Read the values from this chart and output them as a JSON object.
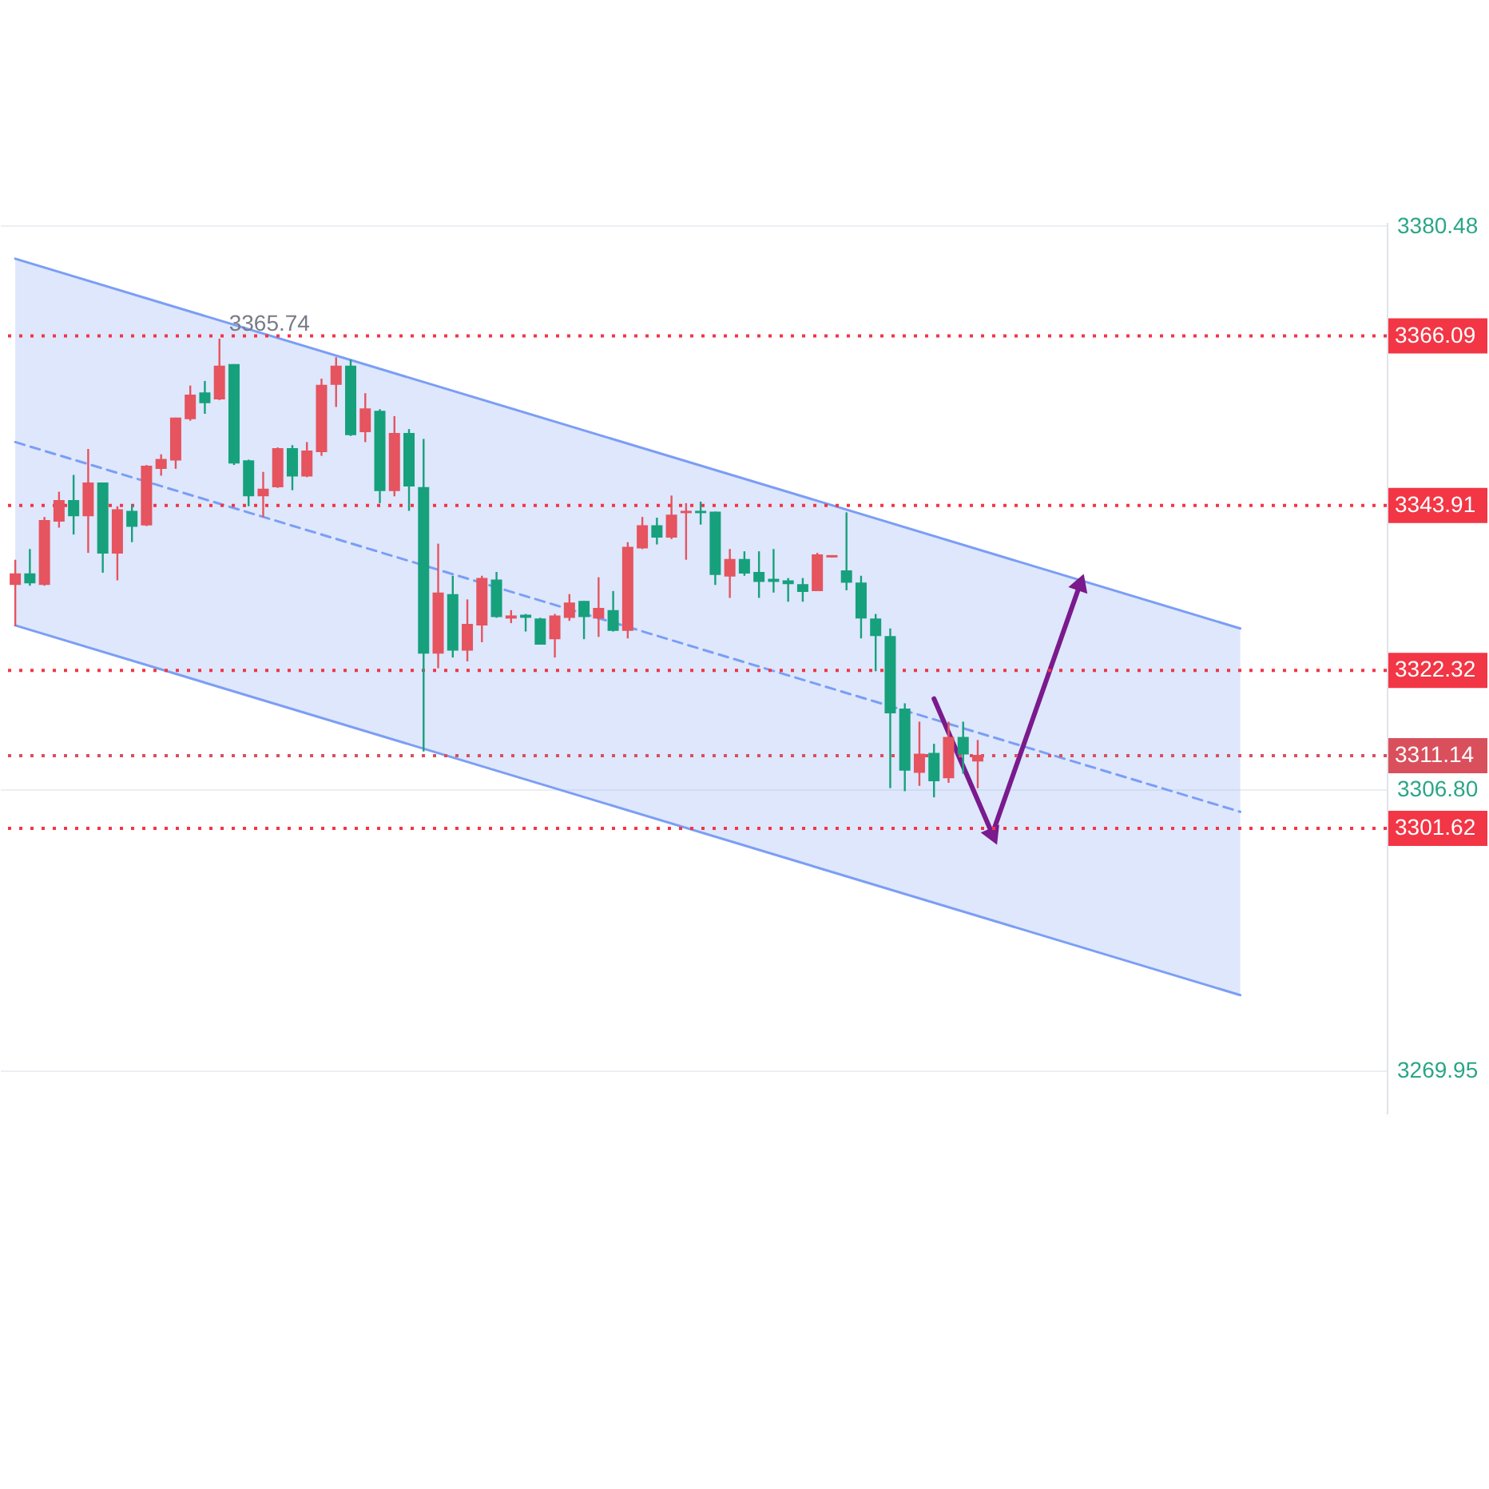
{
  "chart_data": {
    "type": "candlestick",
    "categories": [
      null,
      null,
      null,
      null,
      null,
      null,
      null,
      null,
      null,
      null,
      null,
      null,
      null,
      null,
      null,
      null,
      null,
      null,
      null,
      null,
      null,
      null,
      null,
      null,
      null,
      null,
      null,
      null,
      null,
      null,
      null,
      null,
      null,
      null,
      null,
      null,
      null,
      null,
      null,
      null,
      null,
      null,
      null,
      null,
      null,
      null,
      null,
      null,
      null,
      null,
      null,
      null,
      null,
      null,
      null,
      null,
      null,
      null,
      null,
      null,
      null,
      null,
      null,
      null,
      null,
      null,
      null,
      null,
      null,
      null,
      null,
      null,
      null,
      null,
      null,
      null,
      null,
      null,
      null,
      null,
      null,
      null,
      null,
      null,
      null,
      null,
      null,
      null,
      null,
      null,
      null,
      null,
      null,
      null
    ],
    "ohlc": [
      [
        3333.6,
        3336.8,
        3328.1,
        3334.9
      ],
      [
        3334.9,
        3338.2,
        3333.4,
        3333.8
      ],
      [
        3333.6,
        3342.4,
        3333.4,
        3341.9
      ],
      [
        3341.9,
        3345.7,
        3341.0,
        3344.5
      ],
      [
        3344.5,
        3347.9,
        3340.1,
        3342.6
      ],
      [
        3342.6,
        3351.3,
        3337.7,
        3346.8
      ],
      [
        3346.8,
        3346.8,
        3335.1,
        3337.7
      ],
      [
        3337.7,
        3343.8,
        3334.1,
        3343.3
      ],
      [
        3343.1,
        3344.0,
        3339.1,
        3341.2
      ],
      [
        3341.4,
        3349.2,
        3341.2,
        3349.0
      ],
      [
        3348.8,
        3350.6,
        3347.8,
        3349.9
      ],
      [
        3349.9,
        3355.4,
        3348.7,
        3355.3
      ],
      [
        3355.3,
        3359.6,
        3355.0,
        3358.3
      ],
      [
        3358.6,
        3360.2,
        3355.9,
        3357.4
      ],
      [
        3357.9,
        3365.74,
        3357.7,
        3362.1
      ],
      [
        3362.3,
        3362.4,
        3349.2,
        3349.5
      ],
      [
        3349.7,
        3349.9,
        3343.8,
        3345.2
      ],
      [
        3345.2,
        3348.3,
        3342.4,
        3346.0
      ],
      [
        3346.4,
        3351.5,
        3346.2,
        3351.3
      ],
      [
        3351.3,
        3351.8,
        3345.9,
        3347.8
      ],
      [
        3347.8,
        3352.2,
        3347.6,
        3351.0
      ],
      [
        3351.0,
        3360.5,
        3350.4,
        3359.6
      ],
      [
        3359.8,
        3363.3,
        3356.8,
        3362.1
      ],
      [
        3362.1,
        3363.0,
        3353.0,
        3353.2
      ],
      [
        3353.6,
        3358.6,
        3352.2,
        3356.5
      ],
      [
        3356.2,
        3356.5,
        3344.2,
        3345.9
      ],
      [
        3345.9,
        3355.6,
        3345.1,
        3353.3
      ],
      [
        3353.3,
        3353.9,
        3343.2,
        3346.5
      ],
      [
        3346.2,
        3352.6,
        3311.7,
        3324.6
      ],
      [
        3324.6,
        3338.9,
        3322.6,
        3332.4
      ],
      [
        3332.2,
        3334.7,
        3324.0,
        3325.0
      ],
      [
        3325.0,
        3331.6,
        3323.5,
        3328.3
      ],
      [
        3328.3,
        3334.7,
        3326.0,
        3334.3
      ],
      [
        3334.1,
        3335.2,
        3329.2,
        3329.4
      ],
      [
        3329.2,
        3330.2,
        3328.5,
        3329.4
      ],
      [
        3329.5,
        3329.7,
        3327.4,
        3329.3
      ],
      [
        3329.0,
        3329.2,
        3325.7,
        3325.8
      ],
      [
        3326.5,
        3329.7,
        3324.0,
        3329.4
      ],
      [
        3329.3,
        3332.3,
        3328.8,
        3331.1
      ],
      [
        3331.3,
        3331.4,
        3326.4,
        3329.4
      ],
      [
        3329.2,
        3334.5,
        3326.7,
        3330.4
      ],
      [
        3330.1,
        3332.7,
        3327.4,
        3327.6
      ],
      [
        3327.6,
        3339.1,
        3326.5,
        3338.4
      ],
      [
        3338.4,
        3342.4,
        3338.2,
        3341.2
      ],
      [
        3341.2,
        3342.3,
        3338.8,
        3339.8
      ],
      [
        3339.8,
        3345.2,
        3339.5,
        3342.6
      ],
      [
        3343.0,
        3344.2,
        3336.8,
        3343.1
      ],
      [
        3343.1,
        3344.4,
        3341.4,
        3343.0
      ],
      [
        3343.0,
        3343.1,
        3333.5,
        3334.9
      ],
      [
        3334.7,
        3338.2,
        3331.8,
        3336.8
      ],
      [
        3336.8,
        3337.9,
        3334.7,
        3335.1
      ],
      [
        3335.1,
        3337.9,
        3331.8,
        3334.0
      ],
      [
        3334.2,
        3338.2,
        3332.5,
        3334.0
      ],
      [
        3334.0,
        3334.4,
        3331.3,
        3333.7
      ],
      [
        3333.5,
        3334.4,
        3331.3,
        3332.7
      ],
      [
        3332.8,
        3337.7,
        3332.7,
        3337.4
      ],
      [
        3337.2,
        3337.4,
        3337.1,
        3337.3
      ],
      [
        3335.3,
        3343.0,
        3332.8,
        3333.9
      ],
      [
        3333.7,
        3334.7,
        3326.5,
        3329.2
      ],
      [
        3329.0,
        3329.7,
        3322.2,
        3326.9
      ],
      [
        3326.7,
        3327.8,
        3306.9,
        3316.8
      ],
      [
        3317.2,
        3318.0,
        3306.5,
        3309.3
      ],
      [
        3309.0,
        3315.6,
        3307.2,
        3311.3
      ],
      [
        3311.4,
        3312.7,
        3305.7,
        3307.9
      ],
      [
        3308.3,
        3315.6,
        3307.6,
        3313.5
      ],
      [
        3313.5,
        3315.6,
        3308.8,
        3311.4
      ],
      [
        3310.5,
        3313.2,
        3306.9,
        3311.14
      ],
      null,
      null,
      null,
      null,
      null,
      null,
      null,
      null,
      null,
      null,
      null,
      null,
      null,
      null,
      null,
      null,
      null,
      null,
      null,
      null,
      null,
      null,
      null,
      null,
      null,
      null,
      null
    ],
    "colors": [
      "#e5545f",
      "#16a17c",
      "#e5545f",
      "#e5545f",
      "#16a17c",
      "#e5545f",
      "#16a17c",
      "#e5545f",
      "#16a17c",
      "#e5545f",
      "#e5545f",
      "#e5545f",
      "#e5545f",
      "#16a17c",
      "#e5545f",
      "#16a17c",
      "#16a17c",
      "#e5545f",
      "#e5545f",
      "#16a17c",
      "#e5545f",
      "#e5545f",
      "#e5545f",
      "#16a17c",
      "#e5545f",
      "#16a17c",
      "#e5545f",
      "#16a17c",
      "#16a17c",
      "#e5545f",
      "#16a17c",
      "#e5545f",
      "#e5545f",
      "#16a17c",
      "#e5545f",
      "#16a17c",
      "#16a17c",
      "#e5545f",
      "#e5545f",
      "#16a17c",
      "#e5545f",
      "#16a17c",
      "#e5545f",
      "#e5545f",
      "#16a17c",
      "#e5545f",
      "#e5545f",
      "#16a17c",
      "#16a17c",
      "#e5545f",
      "#16a17c",
      "#16a17c",
      "#16a17c",
      "#16a17c",
      "#16a17c",
      "#e5545f",
      "#e5545f",
      "#16a17c",
      "#16a17c",
      "#16a17c",
      "#16a17c",
      "#16a17c",
      "#e5545f",
      "#16a17c",
      "#e5545f",
      "#16a17c",
      "#e5545f",
      null,
      null,
      null,
      null,
      null,
      null,
      null,
      null,
      null,
      null,
      null,
      null,
      null,
      null,
      null,
      null,
      null,
      null,
      null,
      null,
      null,
      null,
      null,
      null,
      null,
      null,
      null
    ],
    "series": [
      {
        "type": "line",
        "values": [
          3352.2,
          null,
          null,
          null,
          null,
          null,
          null,
          null,
          null,
          null,
          null,
          null,
          null,
          null,
          null,
          null,
          null,
          null,
          null,
          null,
          null,
          null,
          null,
          null,
          null,
          null,
          null,
          null,
          null,
          null,
          null,
          null,
          null,
          null,
          null,
          null,
          null,
          null,
          null,
          null,
          null,
          null,
          null,
          null,
          null,
          null,
          null,
          null,
          null,
          null,
          null,
          null,
          null,
          null,
          null,
          null,
          null,
          null,
          null,
          null,
          null,
          null,
          null,
          null,
          null,
          null,
          null,
          null,
          null,
          null,
          null,
          null,
          null,
          null,
          null,
          null,
          null,
          null,
          null,
          null,
          null,
          null,
          null,
          null,
          3303.8,
          null,
          null,
          null,
          null,
          null,
          null,
          null,
          null,
          null
        ],
        "lower": [
          3328.2,
          null,
          null,
          null,
          null,
          null,
          null,
          null,
          null,
          null,
          null,
          null,
          null,
          null,
          null,
          null,
          null,
          null,
          null,
          null,
          null,
          null,
          null,
          null,
          null,
          null,
          null,
          null,
          null,
          null,
          null,
          null,
          null,
          null,
          null,
          null,
          null,
          null,
          null,
          null,
          null,
          null,
          null,
          null,
          null,
          null,
          null,
          null,
          null,
          null,
          null,
          null,
          null,
          null,
          null,
          null,
          null,
          null,
          null,
          null,
          null,
          null,
          null,
          null,
          null,
          null,
          null,
          null,
          null,
          null,
          null,
          null,
          null,
          null,
          null,
          null,
          null,
          null,
          null,
          null,
          null,
          null,
          null,
          null,
          3279.8,
          null,
          null,
          null,
          null,
          null,
          null,
          null,
          null,
          null
        ],
        "upper": [
          3376.2,
          null,
          null,
          null,
          null,
          null,
          null,
          null,
          null,
          null,
          null,
          null,
          null,
          null,
          null,
          null,
          null,
          null,
          null,
          null,
          null,
          null,
          null,
          null,
          null,
          null,
          null,
          null,
          null,
          null,
          null,
          null,
          null,
          null,
          null,
          null,
          null,
          null,
          null,
          null,
          null,
          null,
          null,
          null,
          null,
          null,
          null,
          null,
          null,
          null,
          null,
          null,
          null,
          null,
          null,
          null,
          null,
          null,
          null,
          null,
          null,
          null,
          null,
          null,
          null,
          null,
          null,
          null,
          null,
          null,
          null,
          null,
          null,
          null,
          null,
          null,
          null,
          null,
          null,
          null,
          null,
          null,
          null,
          null,
          3327.8,
          null,
          null,
          null,
          null,
          null,
          null,
          null,
          null,
          null
        ],
        "color": "#7b9ef5",
        "line_style": "dashed"
      },
      {
        "type": "line",
        "values": [
          3376.2,
          null,
          null,
          null,
          null,
          null,
          null,
          null,
          null,
          null,
          null,
          null,
          null,
          null,
          null,
          null,
          null,
          null,
          null,
          null,
          null,
          null,
          null,
          null,
          null,
          null,
          null,
          null,
          null,
          null,
          null,
          null,
          null,
          null,
          null,
          null,
          null,
          null,
          null,
          null,
          null,
          null,
          null,
          null,
          null,
          null,
          null,
          null,
          null,
          null,
          null,
          null,
          null,
          null,
          null,
          null,
          null,
          null,
          null,
          null,
          null,
          null,
          null,
          null,
          null,
          null,
          null,
          null,
          null,
          null,
          null,
          null,
          null,
          null,
          null,
          null,
          null,
          null,
          null,
          null,
          null,
          null,
          null,
          null,
          3327.8,
          null,
          null,
          null,
          null,
          null,
          null,
          null,
          null,
          null
        ],
        "color": "#7b9ef5",
        "line_style": "solid"
      },
      {
        "type": "line",
        "values": [
          3328.2,
          null,
          null,
          null,
          null,
          null,
          null,
          null,
          null,
          null,
          null,
          null,
          null,
          null,
          null,
          null,
          null,
          null,
          null,
          null,
          null,
          null,
          null,
          null,
          null,
          null,
          null,
          null,
          null,
          null,
          null,
          null,
          null,
          null,
          null,
          null,
          null,
          null,
          null,
          null,
          null,
          null,
          null,
          null,
          null,
          null,
          null,
          null,
          null,
          null,
          null,
          null,
          null,
          null,
          null,
          null,
          null,
          null,
          null,
          null,
          null,
          null,
          null,
          null,
          null,
          null,
          null,
          null,
          null,
          null,
          null,
          null,
          null,
          null,
          null,
          null,
          null,
          null,
          null,
          null,
          null,
          null,
          null,
          null,
          3279.8,
          null,
          null,
          null,
          null,
          null,
          null,
          null,
          null,
          null
        ],
        "color": "#7b9ef5",
        "line_style": "solid"
      },
      {
        "type": "line",
        "line_style": "solid",
        "values": [
          null,
          null,
          null,
          null,
          null,
          null,
          null,
          null,
          null,
          null,
          null,
          null,
          null,
          null,
          null,
          null,
          null,
          null,
          null,
          null,
          null,
          null,
          null,
          null,
          null,
          null,
          null,
          null,
          null,
          null,
          null,
          null,
          null,
          null,
          null,
          null,
          null,
          null,
          null,
          null,
          null,
          null,
          null,
          null,
          null,
          null,
          null,
          null,
          null,
          null,
          null,
          null,
          null,
          null,
          null,
          null,
          null,
          null,
          null,
          null,
          null,
          null,
          null,
          3318.6,
          null,
          null,
          null,
          3300.9,
          null,
          null,
          null,
          null,
          null,
          3333.5,
          null,
          null,
          null,
          null,
          null,
          null,
          null,
          null,
          null,
          null,
          null,
          null,
          null,
          null,
          null,
          null,
          null,
          null,
          null,
          null
        ],
        "color": "#7a1a8c",
        "marker": "triangle"
      }
    ],
    "ref_lines": [
      {
        "axis": "y",
        "value": 3366.09,
        "label": "3366.09",
        "color": "#f23645",
        "line_style": "dotted"
      },
      {
        "axis": "y",
        "value": 3343.91,
        "label": "3343.91",
        "color": "#f23645",
        "line_style": "dotted"
      },
      {
        "axis": "y",
        "value": 3322.32,
        "label": "3322.32",
        "color": "#f23645",
        "line_style": "dotted"
      },
      {
        "axis": "y",
        "value": 3311.14,
        "label": "3311.14",
        "color": "#d9505c",
        "line_style": "dotted"
      },
      {
        "axis": "y",
        "value": 3301.62,
        "label": "3301.62",
        "color": "#f23645",
        "line_style": "dotted"
      }
    ],
    "annotations": [
      {
        "text": "3365.74",
        "y": 3365.74
      }
    ],
    "ylim": [
      3264.3,
      3381
    ],
    "yticks": [
      3380.48,
      {
        "value": 3306.8,
        "label": "3306.80"
      },
      3269.95
    ],
    "tick_labels": "y",
    "grid": "y"
  }
}
